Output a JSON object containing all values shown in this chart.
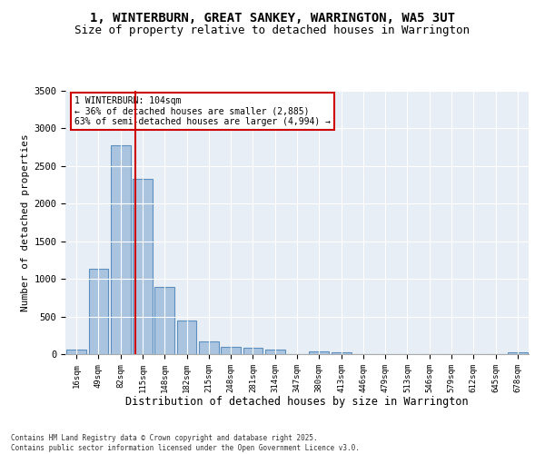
{
  "title": "1, WINTERBURN, GREAT SANKEY, WARRINGTON, WA5 3UT",
  "subtitle": "Size of property relative to detached houses in Warrington",
  "xlabel": "Distribution of detached houses by size in Warrington",
  "ylabel": "Number of detached properties",
  "categories": [
    "16sqm",
    "49sqm",
    "82sqm",
    "115sqm",
    "148sqm",
    "182sqm",
    "215sqm",
    "248sqm",
    "281sqm",
    "314sqm",
    "347sqm",
    "380sqm",
    "413sqm",
    "446sqm",
    "479sqm",
    "513sqm",
    "546sqm",
    "579sqm",
    "612sqm",
    "645sqm",
    "678sqm"
  ],
  "values": [
    55,
    1130,
    2770,
    2330,
    890,
    445,
    170,
    100,
    85,
    55,
    0,
    40,
    25,
    0,
    0,
    0,
    0,
    0,
    0,
    0,
    20
  ],
  "bar_color": "#aac4e0",
  "bar_edge_color": "#5a8fc0",
  "vline_color": "#cc0000",
  "annotation_text": "1 WINTERBURN: 104sqm\n← 36% of detached houses are smaller (2,885)\n63% of semi-detached houses are larger (4,994) →",
  "annotation_box_color": "#ffffff",
  "annotation_box_edge": "#cc0000",
  "ylim": [
    0,
    3500
  ],
  "yticks": [
    0,
    500,
    1000,
    1500,
    2000,
    2500,
    3000,
    3500
  ],
  "background_color": "#e8eef5",
  "footer1": "Contains HM Land Registry data © Crown copyright and database right 2025.",
  "footer2": "Contains public sector information licensed under the Open Government Licence v3.0.",
  "title_fontsize": 10,
  "subtitle_fontsize": 9
}
